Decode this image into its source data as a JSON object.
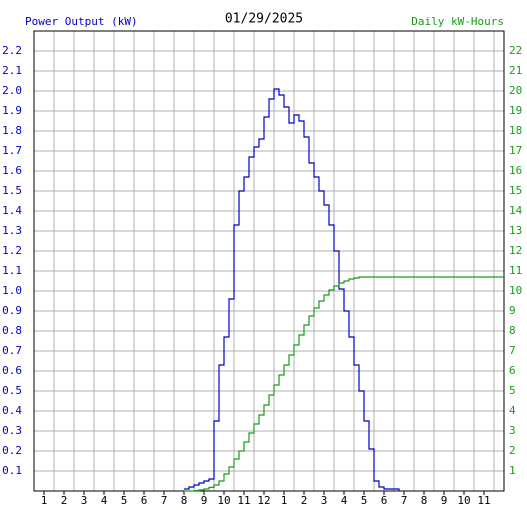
{
  "chart_data": {
    "type": "step",
    "title": "01/29/2025",
    "y_label": "Power Output (kW)",
    "y2_label": "Daily kW-Hours",
    "x": [
      8.0,
      8.25,
      8.5,
      8.75,
      9.0,
      9.25,
      9.5,
      9.75,
      10.0,
      10.25,
      10.5,
      10.75,
      11.0,
      11.25,
      11.5,
      11.75,
      12.0,
      12.25,
      12.5,
      12.75,
      13.0,
      13.25,
      13.5,
      13.75,
      14.0,
      14.25,
      14.5,
      14.75,
      15.0,
      15.25,
      15.5,
      15.75,
      16.0,
      16.25,
      16.5,
      16.75,
      17.0,
      17.25,
      17.5,
      17.75,
      18.0,
      18.25,
      18.5,
      18.75,
      24
    ],
    "series": [
      {
        "name": "Power Output (kW)",
        "color": "#0000c8",
        "axis": "y",
        "values": [
          0.01,
          0.02,
          0.03,
          0.04,
          0.05,
          0.06,
          0.35,
          0.63,
          0.77,
          0.96,
          1.33,
          1.5,
          1.57,
          1.67,
          1.72,
          1.76,
          1.87,
          1.96,
          2.01,
          1.98,
          1.92,
          1.84,
          1.88,
          1.85,
          1.77,
          1.64,
          1.57,
          1.5,
          1.43,
          1.33,
          1.2,
          1.01,
          0.9,
          0.77,
          0.63,
          0.5,
          0.35,
          0.21,
          0.05,
          0.02,
          0.01,
          0.01,
          0.01,
          0,
          null
        ]
      },
      {
        "name": "Daily kW-Hours",
        "color": "#1a9a1a",
        "axis": "y2",
        "values": [
          0,
          0,
          0.02,
          0.05,
          0.1,
          0.18,
          0.3,
          0.5,
          0.85,
          1.2,
          1.6,
          2.0,
          2.45,
          2.9,
          3.35,
          3.8,
          4.3,
          4.8,
          5.3,
          5.8,
          6.3,
          6.8,
          7.3,
          7.8,
          8.3,
          8.75,
          9.15,
          9.5,
          9.8,
          10.05,
          10.25,
          10.4,
          10.5,
          10.6,
          10.65,
          10.7,
          10.7,
          10.7,
          10.7,
          10.7,
          10.7,
          10.7,
          10.7,
          10.7,
          10.7
        ]
      }
    ],
    "xlim": [
      0.5,
      24
    ],
    "xticks": [
      1,
      2,
      3,
      4,
      5,
      6,
      7,
      8,
      9,
      10,
      11,
      12,
      {
        "value": 13,
        "label": "1"
      },
      {
        "value": 14,
        "label": "2"
      },
      {
        "value": 15,
        "label": "3"
      },
      {
        "value": 16,
        "label": "4"
      },
      {
        "value": 17,
        "label": "5"
      },
      {
        "value": 18,
        "label": "6"
      },
      {
        "value": 19,
        "label": "7"
      },
      {
        "value": 20,
        "label": "8"
      },
      {
        "value": 21,
        "label": "9"
      },
      {
        "value": 22,
        "label": "10"
      },
      {
        "value": 23,
        "label": "11"
      }
    ],
    "ylim": [
      0,
      2.3
    ],
    "yticks": [
      0.1,
      0.2,
      0.3,
      0.4,
      0.5,
      0.6,
      0.7,
      0.8,
      0.9,
      {
        "value": 1,
        "label": "1.0"
      },
      1.1,
      1.2,
      1.3,
      1.4,
      1.5,
      1.6,
      1.7,
      1.8,
      1.9,
      {
        "value": 2,
        "label": "2.0"
      },
      2.1,
      2.2
    ],
    "y2lim": [
      0,
      23
    ],
    "y2ticks": [
      1,
      2,
      3,
      4,
      5,
      6,
      7,
      8,
      9,
      10,
      11,
      12,
      13,
      14,
      15,
      16,
      17,
      18,
      19,
      20,
      21,
      22
    ],
    "grid": true
  }
}
